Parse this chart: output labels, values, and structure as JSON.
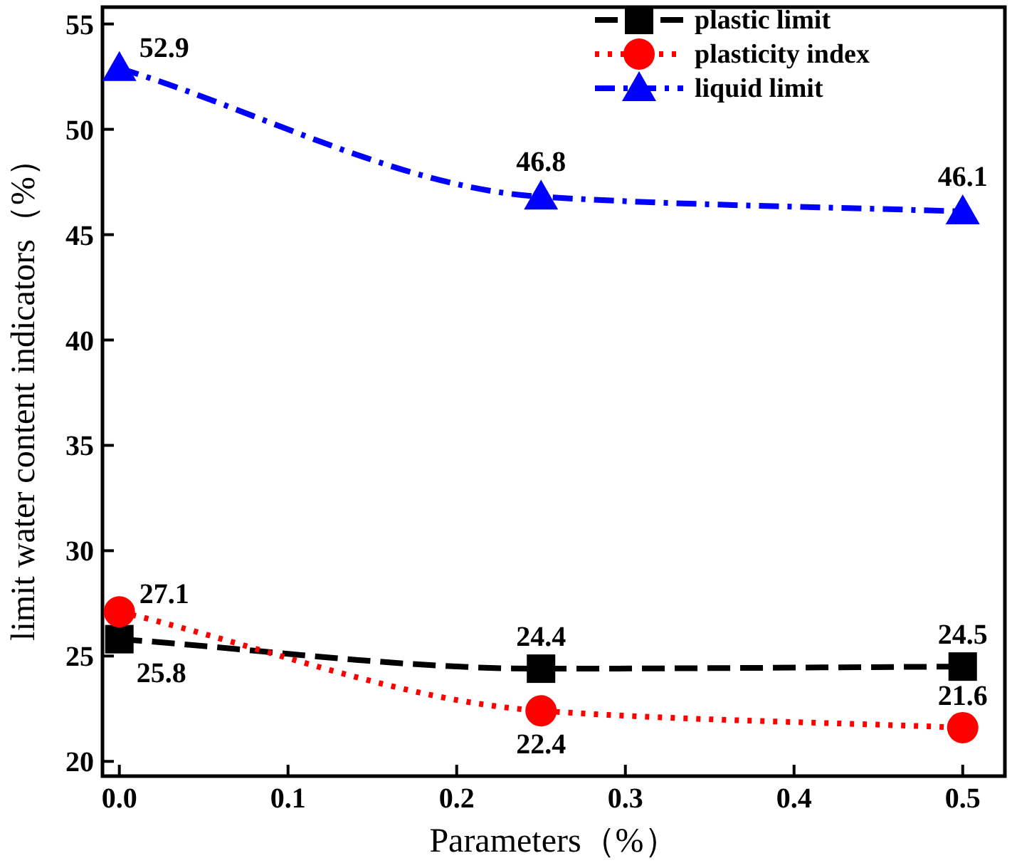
{
  "chart_data": {
    "type": "line",
    "xlabel": "Parameters（%）",
    "ylabel": "limit water content indicators（%）",
    "x": [
      0,
      0.25,
      0.5
    ],
    "xlim": [
      -0.01,
      0.525
    ],
    "xticks": [
      {
        "value": 0,
        "label": "0.0"
      },
      0.1,
      0.2,
      0.3,
      0.4,
      0.5
    ],
    "ylim": [
      19.3,
      55.8
    ],
    "yticks": [
      20,
      25,
      30,
      35,
      40,
      45,
      50,
      55
    ],
    "series": [
      {
        "name": "plastic limit",
        "color": "#000000",
        "values": [
          25.8,
          24.4,
          24.5
        ],
        "marker": "square",
        "line_style": "dashed"
      },
      {
        "name": "plasticity index",
        "color": "#ff0000",
        "values": [
          27.1,
          22.4,
          21.6
        ],
        "marker": "circle",
        "line_style": "dotted"
      },
      {
        "name": "liquid limit",
        "color": "#0000ff",
        "values": [
          52.9,
          46.8,
          46.1
        ],
        "marker": "triangle",
        "line_style": "dashdot"
      }
    ],
    "data_labels": true,
    "legend": "top right",
    "grid": false
  }
}
